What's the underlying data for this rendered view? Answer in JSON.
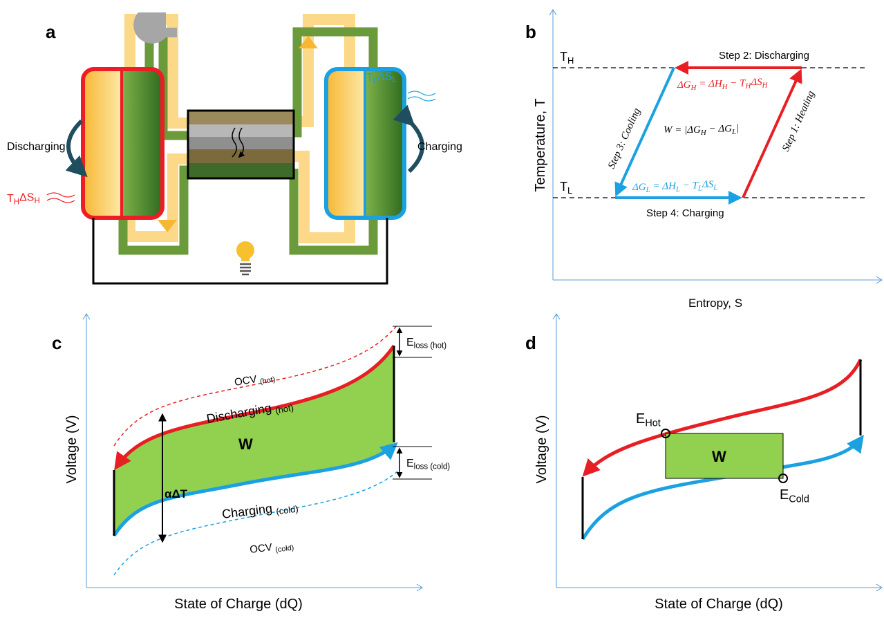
{
  "panels": {
    "a": {
      "label": "a",
      "discharging": "Discharging",
      "charging": "Charging",
      "heat_in": [
        "T",
        "H",
        "ΔS",
        "H"
      ],
      "heat_out": [
        "T",
        "L",
        "ΔS",
        "L"
      ]
    },
    "b": {
      "label": "b",
      "t_high": [
        "T",
        "H"
      ],
      "t_low": [
        "T",
        "L"
      ],
      "step1": "Step 1: Heating",
      "step2": "Step 2: Discharging",
      "step3": "Step 3: Cooling",
      "step4": "Step 4: Charging",
      "dg_h": [
        "ΔG",
        "H",
        " = ΔH",
        "H",
        " − T",
        "H",
        "ΔS",
        "H"
      ],
      "dg_l": [
        "ΔG",
        "L",
        " = ΔH",
        "L",
        " − T",
        "L",
        "ΔS",
        "L"
      ],
      "work": [
        "W = |ΔG",
        "H",
        " − ΔG",
        "L",
        "|"
      ],
      "y_label": "Temperature, T",
      "x_label": "Entropy, S"
    },
    "c": {
      "label": "c",
      "ocv_hot": [
        "OCV ",
        "(hot)"
      ],
      "ocv_cold": [
        "OCV ",
        "(cold)"
      ],
      "discharging": [
        "Discharging ",
        "(hot)"
      ],
      "charging": [
        "Charging ",
        "(cold)"
      ],
      "work": "W",
      "alpha": "αΔT",
      "loss_hot": [
        "E",
        "loss (hot)"
      ],
      "loss_cold": [
        "E",
        "loss (cold)"
      ],
      "y_label": "Voltage (V)",
      "x_label": "State of Charge (dQ)"
    },
    "d": {
      "label": "d",
      "e_hot": [
        "E",
        "Hot"
      ],
      "e_cold": [
        "E",
        "Cold"
      ],
      "work": "W",
      "y_label": "Voltage (V)",
      "x_label": "State of Charge (dQ)"
    }
  }
}
